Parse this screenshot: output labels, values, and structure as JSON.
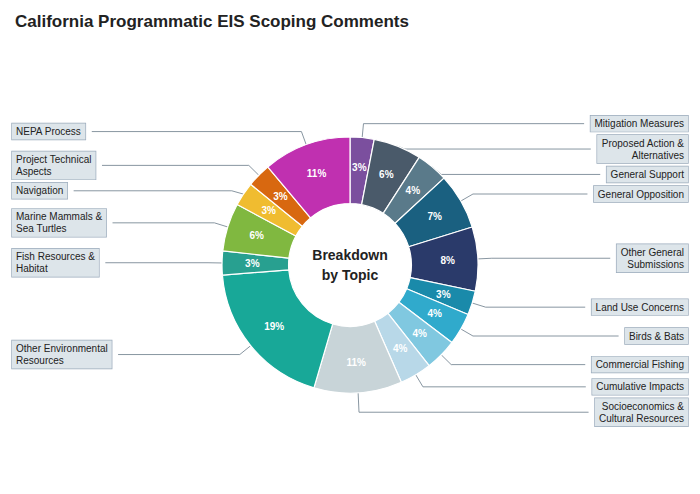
{
  "chart_data": {
    "type": "pie",
    "title": "California Programmatic EIS Scoping Comments",
    "annotations": [
      "Breakdown",
      "by Topic"
    ],
    "categories": [
      "Mitigation Measures",
      "Proposed Action &\nAlternatives",
      "General Support",
      "General Opposition",
      "Other General\nSubmissions",
      "Land Use Concerns",
      "Birds & Bats",
      "Commercial Fishing",
      "Cumulative Impacts",
      "Socioeconomics &\nCultural Resources",
      "Other Environmental\nResources",
      "Fish Resources &\nHabitat",
      "Marine Mammals &\nSea Turtles",
      "Navigation",
      "Project Technical\nAspects",
      "NEPA Process"
    ],
    "values": [
      3,
      6,
      4,
      7,
      8,
      3,
      4,
      4,
      4,
      11,
      19,
      3,
      6,
      3,
      3,
      11
    ],
    "value_labels": [
      "3%",
      "6%",
      "4%",
      "7%",
      "8%",
      "3%",
      "4%",
      "4%",
      "4%",
      "11%",
      "19%",
      "3%",
      "6%",
      "3%",
      "3%",
      "11%"
    ],
    "colors": [
      "#7B4F9E",
      "#4A5A6A",
      "#5A7A8A",
      "#1A6080",
      "#2A3A6A",
      "#1A8AAA",
      "#30AACC",
      "#80C8E0",
      "#B8D8E8",
      "#C8D4D8",
      "#18A898",
      "#28A090",
      "#80B840",
      "#F0BC30",
      "#D86810",
      "#C030B0"
    ],
    "data_labels": true
  }
}
